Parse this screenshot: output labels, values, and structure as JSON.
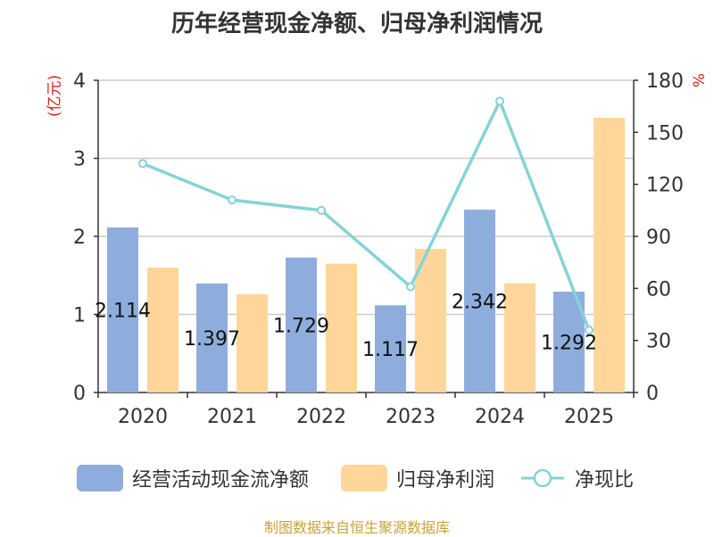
{
  "colors": {
    "bar1": "#8eaddc",
    "bar2": "#ffd699",
    "line": "#86d3d6",
    "axis_label_red": "#e0201c",
    "source": "#c8a23a"
  },
  "chart_data": {
    "type": "bar",
    "title": "历年经营现金净额、归母净利润情况",
    "categories": [
      "2020",
      "2021",
      "2022",
      "2023",
      "2024",
      "2025"
    ],
    "ylabel": "(亿元)",
    "ylabel_right": "%",
    "ylim": [
      0,
      4
    ],
    "yticks": [
      "0",
      "1",
      "2",
      "3",
      "4"
    ],
    "ylim_right": [
      0,
      180
    ],
    "yticks_right": [
      "0",
      "30",
      "60",
      "90",
      "120",
      "150",
      "180"
    ],
    "grid": true,
    "legend_position": "bottom",
    "series": [
      {
        "name": "经营活动现金流净额",
        "kind": "bar",
        "axis": "left",
        "values": [
          2.114,
          1.397,
          1.729,
          1.117,
          2.342,
          1.292
        ],
        "labels": [
          "2.114",
          "1.397",
          "1.729",
          "1.117",
          "2.342",
          "1.292"
        ]
      },
      {
        "name": "归母净利润",
        "kind": "bar",
        "axis": "left",
        "values": [
          1.6,
          1.26,
          1.65,
          1.84,
          1.4,
          3.52
        ]
      },
      {
        "name": "净现比",
        "kind": "line",
        "axis": "right",
        "values": [
          132,
          111,
          105,
          61,
          168,
          36
        ]
      }
    ]
  },
  "source": "制图数据来自恒生聚源数据库"
}
